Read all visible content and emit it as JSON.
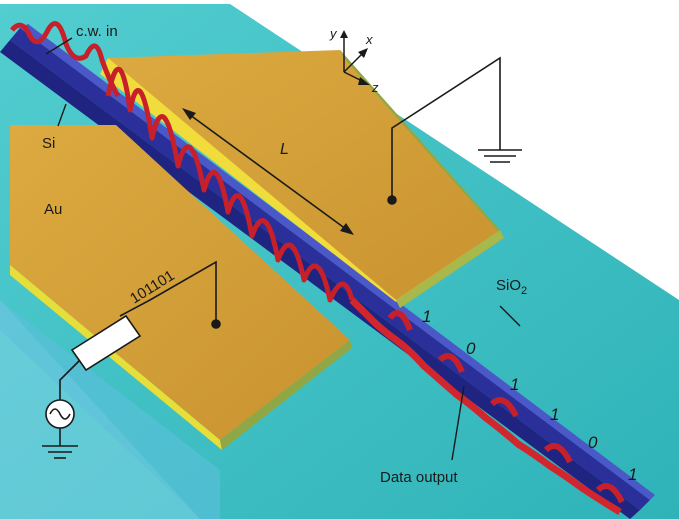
{
  "labels": {
    "cw_in": "c.w. in",
    "si": "Si",
    "au": "Au",
    "length": "L",
    "signal": "101101",
    "sio2_main": "SiO",
    "sio2_sub": "2",
    "data_output": "Data output"
  },
  "axes": {
    "y": "y",
    "x": "x",
    "z": "z"
  },
  "bits": [
    "1",
    "0",
    "1",
    "1",
    "0",
    "1"
  ],
  "colors": {
    "substrate": "#3ec0c4",
    "substrate_dark": "#2aa7ad",
    "gold": "#d6a23a",
    "gold_edge_top": "#f2e23b",
    "gold_edge_side": "#7a9a3a",
    "waveguide": "#2a2f9a",
    "wave": "#c8202a"
  }
}
